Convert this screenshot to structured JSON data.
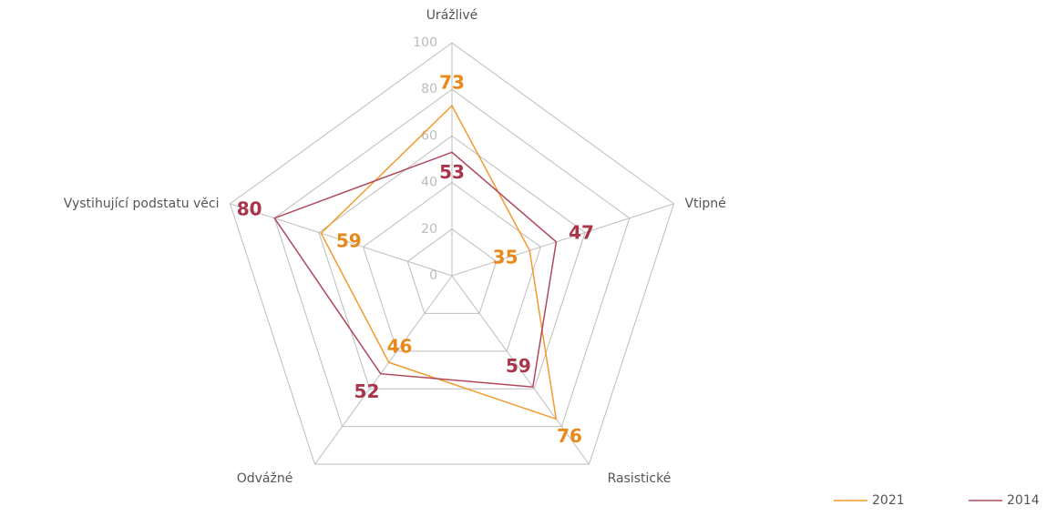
{
  "chart_data": {
    "type": "radar",
    "categories": [
      "Urážlivé",
      "Vtipné",
      "Rasistické",
      "Odvážné",
      "Vystihující podstatu věci"
    ],
    "series": [
      {
        "name": "2021",
        "color": "#f39a2d",
        "label_color": "#e8891a",
        "values": [
          73,
          35,
          76,
          46,
          59
        ]
      },
      {
        "name": "2014",
        "color": "#b0485a",
        "label_color": "#a8354a",
        "values": [
          53,
          47,
          59,
          52,
          80
        ]
      }
    ],
    "ylim": [
      0,
      100
    ],
    "yticks": [
      0,
      20,
      40,
      60,
      80,
      100
    ],
    "grid": true,
    "legend": "bottom-right"
  }
}
